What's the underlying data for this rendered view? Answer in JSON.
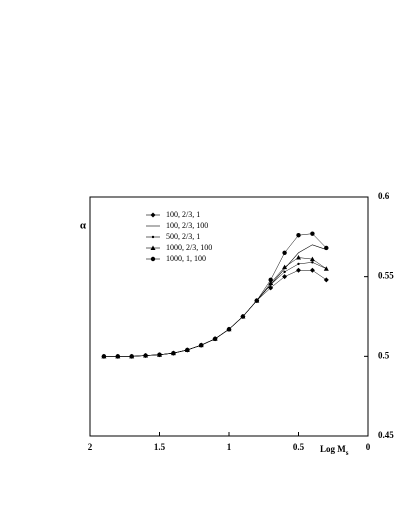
{
  "chart_data": {
    "type": "line",
    "x_label": "Log M",
    "x_label_sub": "s",
    "y_label": "α",
    "x": [
      1.9,
      1.8,
      1.7,
      1.6,
      1.5,
      1.4,
      1.3,
      1.2,
      1.1,
      1.0,
      0.9,
      0.8,
      0.7,
      0.6,
      0.5,
      0.4,
      0.3
    ],
    "series": [
      {
        "name": "100, 2/3, 1",
        "color": "#000000",
        "marker": "diamond",
        "values": [
          0.5,
          0.5,
          0.5,
          0.5005,
          0.501,
          0.502,
          0.504,
          0.507,
          0.511,
          0.517,
          0.525,
          0.535,
          0.543,
          0.55,
          0.554,
          0.554,
          0.548
        ]
      },
      {
        "name": "100, 2/3, 100",
        "color": "#000000",
        "marker": "none",
        "values": [
          0.5,
          0.5,
          0.5,
          0.5005,
          0.501,
          0.502,
          0.504,
          0.507,
          0.511,
          0.517,
          0.525,
          0.535,
          0.545,
          0.555,
          0.565,
          0.57,
          0.567
        ]
      },
      {
        "name": "500, 2/3, 1",
        "color": "#000000",
        "marker": "dot",
        "values": [
          0.5,
          0.5,
          0.5,
          0.5005,
          0.501,
          0.502,
          0.504,
          0.507,
          0.511,
          0.517,
          0.525,
          0.535,
          0.545,
          0.553,
          0.558,
          0.559,
          0.555
        ]
      },
      {
        "name": "1000, 2/3, 100",
        "color": "#000000",
        "marker": "triangle",
        "values": [
          0.5,
          0.5,
          0.5,
          0.5005,
          0.501,
          0.502,
          0.504,
          0.507,
          0.511,
          0.517,
          0.525,
          0.535,
          0.546,
          0.556,
          0.562,
          0.561,
          0.555
        ]
      },
      {
        "name": "1000, 1, 100",
        "color": "#000000",
        "marker": "circle",
        "values": [
          0.5,
          0.5,
          0.5,
          0.5005,
          0.501,
          0.502,
          0.504,
          0.507,
          0.511,
          0.517,
          0.525,
          0.535,
          0.548,
          0.565,
          0.576,
          0.577,
          0.568
        ]
      }
    ],
    "xlim": [
      2,
      0
    ],
    "xticks": [
      2,
      1.5,
      1,
      0.5,
      0
    ],
    "ylim": [
      0.45,
      0.6
    ],
    "yticks": [
      0.45,
      0.5,
      0.55,
      0.6
    ],
    "y_axis_side": "right"
  }
}
